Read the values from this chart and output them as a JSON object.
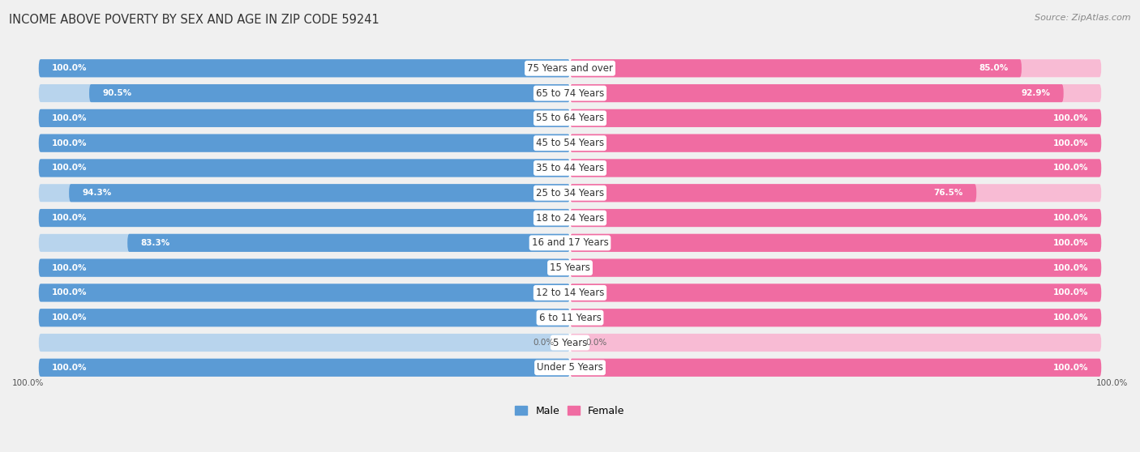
{
  "title": "INCOME ABOVE POVERTY BY SEX AND AGE IN ZIP CODE 59241",
  "source": "Source: ZipAtlas.com",
  "categories": [
    "Under 5 Years",
    "5 Years",
    "6 to 11 Years",
    "12 to 14 Years",
    "15 Years",
    "16 and 17 Years",
    "18 to 24 Years",
    "25 to 34 Years",
    "35 to 44 Years",
    "45 to 54 Years",
    "55 to 64 Years",
    "65 to 74 Years",
    "75 Years and over"
  ],
  "male": [
    100.0,
    0.0,
    100.0,
    100.0,
    100.0,
    83.3,
    100.0,
    94.3,
    100.0,
    100.0,
    100.0,
    90.5,
    100.0
  ],
  "female": [
    100.0,
    0.0,
    100.0,
    100.0,
    100.0,
    100.0,
    100.0,
    76.5,
    100.0,
    100.0,
    100.0,
    92.9,
    85.0
  ],
  "male_color": "#5b9bd5",
  "female_color": "#f06ca2",
  "male_color_light": "#b8d4ed",
  "female_color_light": "#f8bbd4",
  "background_color": "#f0f0f0",
  "row_bg_color": "#e8e8e8",
  "white_color": "#ffffff",
  "max_val": 100.0,
  "title_fontsize": 10.5,
  "label_fontsize": 8.5,
  "value_fontsize": 7.5,
  "legend_fontsize": 9,
  "source_fontsize": 8
}
